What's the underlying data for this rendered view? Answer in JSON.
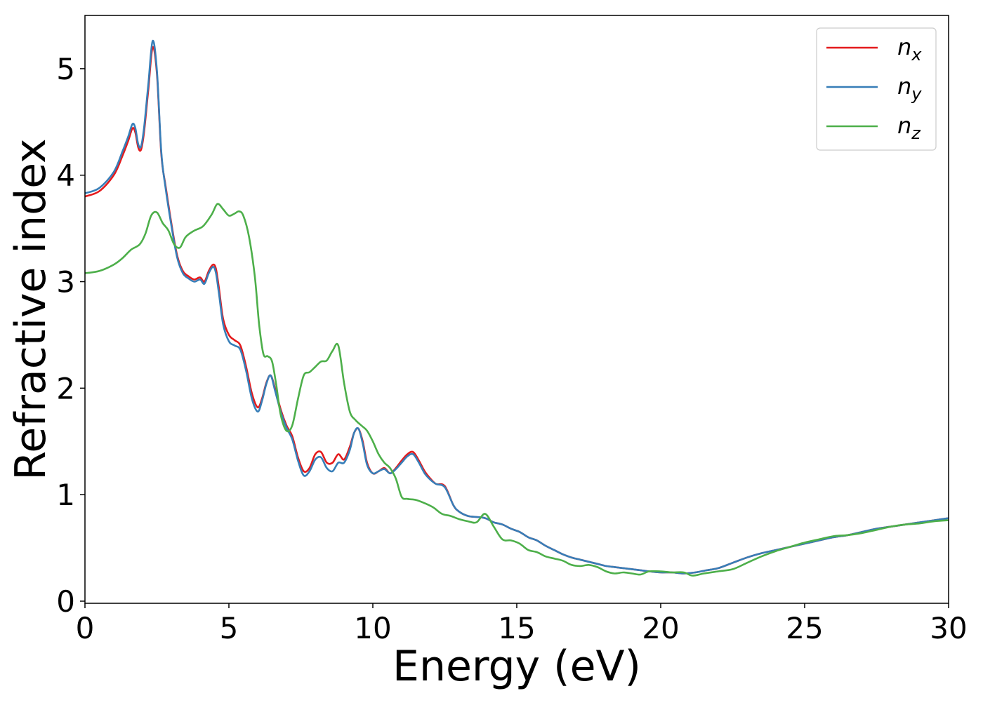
{
  "chart_data": {
    "type": "line",
    "title": "",
    "xlabel": "Energy (eV)",
    "ylabel": "Refractive index",
    "xlim": [
      0,
      30
    ],
    "ylim": [
      -0.02,
      5.5
    ],
    "xticks": [
      0,
      5,
      10,
      15,
      20,
      25,
      30
    ],
    "xtick_labels": [
      "0",
      "5",
      "10",
      "15",
      "20",
      "25",
      "30"
    ],
    "yticks": [
      0,
      1,
      2,
      3,
      4,
      5
    ],
    "ytick_labels": [
      "0",
      "1",
      "2",
      "3",
      "4",
      "5"
    ],
    "grid": false,
    "legend_position": "top-right",
    "series": [
      {
        "name": "n_x",
        "base": "n",
        "sub": "x",
        "color": "#e41a1c",
        "x": [
          0,
          0.5,
          1.0,
          1.3,
          1.5,
          1.65,
          1.75,
          1.85,
          1.95,
          2.05,
          2.2,
          2.35,
          2.5,
          2.65,
          2.8,
          3.0,
          3.2,
          3.4,
          3.6,
          3.8,
          4.0,
          4.15,
          4.3,
          4.45,
          4.55,
          4.65,
          4.8,
          5.0,
          5.2,
          5.4,
          5.6,
          5.8,
          6.0,
          6.15,
          6.3,
          6.45,
          6.6,
          6.8,
          7.0,
          7.2,
          7.4,
          7.6,
          7.8,
          8.0,
          8.2,
          8.4,
          8.6,
          8.8,
          9.0,
          9.2,
          9.35,
          9.5,
          9.65,
          9.8,
          10.0,
          10.2,
          10.4,
          10.6,
          10.8,
          11.0,
          11.2,
          11.4,
          11.6,
          11.8,
          12.0,
          12.2,
          12.5,
          12.8,
          13.0,
          13.3,
          13.6,
          13.9,
          14.2,
          14.5,
          14.8,
          15.1,
          15.4,
          15.7,
          16.0,
          16.3,
          16.6,
          16.9,
          17.2,
          17.5,
          17.8,
          18.1,
          18.4,
          18.7,
          19.0,
          19.3,
          19.6,
          20.0,
          20.4,
          20.8,
          21.2,
          21.6,
          22.0,
          22.5,
          23.0,
          23.5,
          24.0,
          24.5,
          25.0,
          25.5,
          26.0,
          26.5,
          27.0,
          27.5,
          28.0,
          28.5,
          29.0,
          29.5,
          30.0
        ],
        "y": [
          3.8,
          3.85,
          4.0,
          4.18,
          4.32,
          4.44,
          4.4,
          4.26,
          4.24,
          4.4,
          4.8,
          5.2,
          4.95,
          4.2,
          3.9,
          3.55,
          3.25,
          3.1,
          3.05,
          3.02,
          3.04,
          3.0,
          3.1,
          3.16,
          3.12,
          2.95,
          2.65,
          2.5,
          2.45,
          2.4,
          2.2,
          1.95,
          1.82,
          1.9,
          2.05,
          2.12,
          2.0,
          1.8,
          1.65,
          1.55,
          1.35,
          1.22,
          1.25,
          1.38,
          1.4,
          1.3,
          1.3,
          1.38,
          1.33,
          1.45,
          1.58,
          1.62,
          1.5,
          1.3,
          1.2,
          1.22,
          1.25,
          1.2,
          1.25,
          1.32,
          1.38,
          1.4,
          1.32,
          1.22,
          1.15,
          1.1,
          1.08,
          0.9,
          0.84,
          0.8,
          0.79,
          0.78,
          0.74,
          0.72,
          0.68,
          0.65,
          0.6,
          0.57,
          0.52,
          0.48,
          0.44,
          0.41,
          0.39,
          0.37,
          0.35,
          0.33,
          0.32,
          0.31,
          0.3,
          0.29,
          0.28,
          0.27,
          0.27,
          0.26,
          0.27,
          0.29,
          0.31,
          0.36,
          0.41,
          0.45,
          0.48,
          0.51,
          0.54,
          0.57,
          0.6,
          0.62,
          0.65,
          0.68,
          0.7,
          0.72,
          0.74,
          0.76,
          0.78
        ]
      },
      {
        "name": "n_y",
        "base": "n",
        "sub": "y",
        "color": "#377eb8",
        "x": [
          0,
          0.5,
          1.0,
          1.3,
          1.5,
          1.65,
          1.75,
          1.85,
          1.95,
          2.05,
          2.2,
          2.35,
          2.5,
          2.65,
          2.8,
          3.0,
          3.2,
          3.4,
          3.6,
          3.8,
          4.0,
          4.15,
          4.3,
          4.45,
          4.55,
          4.65,
          4.8,
          5.0,
          5.2,
          5.4,
          5.6,
          5.8,
          6.0,
          6.15,
          6.3,
          6.45,
          6.6,
          6.8,
          7.0,
          7.2,
          7.4,
          7.6,
          7.8,
          8.0,
          8.2,
          8.4,
          8.6,
          8.8,
          9.0,
          9.2,
          9.35,
          9.5,
          9.65,
          9.8,
          10.0,
          10.2,
          10.4,
          10.6,
          10.8,
          11.0,
          11.2,
          11.4,
          11.6,
          11.8,
          12.0,
          12.2,
          12.5,
          12.8,
          13.0,
          13.3,
          13.6,
          13.9,
          14.2,
          14.5,
          14.8,
          15.1,
          15.4,
          15.7,
          16.0,
          16.3,
          16.6,
          16.9,
          17.2,
          17.5,
          17.8,
          18.1,
          18.4,
          18.7,
          19.0,
          19.3,
          19.6,
          20.0,
          20.4,
          20.8,
          21.2,
          21.6,
          22.0,
          22.5,
          23.0,
          23.5,
          24.0,
          24.5,
          25.0,
          25.5,
          26.0,
          26.5,
          27.0,
          27.5,
          28.0,
          28.5,
          29.0,
          29.5,
          30.0
        ],
        "y": [
          3.83,
          3.88,
          4.03,
          4.22,
          4.36,
          4.48,
          4.44,
          4.29,
          4.27,
          4.44,
          4.85,
          5.26,
          4.98,
          4.22,
          3.88,
          3.53,
          3.23,
          3.08,
          3.03,
          3.0,
          3.02,
          2.98,
          3.08,
          3.14,
          3.08,
          2.9,
          2.6,
          2.44,
          2.4,
          2.36,
          2.16,
          1.9,
          1.78,
          1.88,
          2.04,
          2.12,
          1.98,
          1.78,
          1.63,
          1.52,
          1.32,
          1.18,
          1.22,
          1.33,
          1.35,
          1.25,
          1.22,
          1.3,
          1.3,
          1.42,
          1.58,
          1.62,
          1.48,
          1.28,
          1.2,
          1.22,
          1.24,
          1.2,
          1.24,
          1.3,
          1.36,
          1.38,
          1.3,
          1.2,
          1.14,
          1.1,
          1.07,
          0.9,
          0.84,
          0.8,
          0.79,
          0.78,
          0.74,
          0.72,
          0.68,
          0.65,
          0.6,
          0.57,
          0.52,
          0.48,
          0.44,
          0.41,
          0.39,
          0.37,
          0.35,
          0.33,
          0.32,
          0.31,
          0.3,
          0.29,
          0.28,
          0.27,
          0.27,
          0.26,
          0.27,
          0.29,
          0.31,
          0.36,
          0.41,
          0.45,
          0.48,
          0.51,
          0.54,
          0.57,
          0.6,
          0.62,
          0.65,
          0.68,
          0.7,
          0.72,
          0.74,
          0.76,
          0.78
        ]
      },
      {
        "name": "n_z",
        "base": "n",
        "sub": "z",
        "color": "#4daf4a",
        "x": [
          0,
          0.5,
          1.0,
          1.3,
          1.6,
          1.9,
          2.1,
          2.3,
          2.5,
          2.7,
          2.9,
          3.1,
          3.3,
          3.5,
          3.8,
          4.1,
          4.4,
          4.6,
          4.8,
          5.0,
          5.2,
          5.35,
          5.5,
          5.7,
          5.9,
          6.05,
          6.2,
          6.35,
          6.5,
          6.65,
          6.8,
          7.0,
          7.2,
          7.4,
          7.6,
          7.8,
          8.0,
          8.2,
          8.4,
          8.6,
          8.8,
          9.0,
          9.2,
          9.4,
          9.6,
          9.8,
          10.0,
          10.2,
          10.4,
          10.6,
          10.8,
          11.0,
          11.2,
          11.5,
          11.8,
          12.1,
          12.4,
          12.7,
          13.0,
          13.3,
          13.6,
          13.9,
          14.2,
          14.5,
          14.8,
          15.1,
          15.4,
          15.7,
          16.0,
          16.3,
          16.6,
          16.9,
          17.2,
          17.5,
          17.8,
          18.1,
          18.4,
          18.7,
          19.0,
          19.3,
          19.6,
          20.0,
          20.4,
          20.8,
          21.1,
          21.5,
          22.0,
          22.5,
          23.0,
          23.5,
          24.0,
          24.5,
          25.0,
          25.5,
          26.0,
          26.5,
          27.0,
          27.5,
          28.0,
          28.5,
          29.0,
          29.5,
          30.0
        ],
        "y": [
          3.08,
          3.1,
          3.16,
          3.22,
          3.3,
          3.35,
          3.45,
          3.62,
          3.65,
          3.55,
          3.48,
          3.35,
          3.32,
          3.42,
          3.48,
          3.52,
          3.63,
          3.73,
          3.68,
          3.62,
          3.64,
          3.66,
          3.62,
          3.42,
          3.05,
          2.6,
          2.32,
          2.3,
          2.25,
          2.02,
          1.75,
          1.6,
          1.65,
          1.9,
          2.12,
          2.15,
          2.2,
          2.25,
          2.26,
          2.35,
          2.4,
          2.05,
          1.78,
          1.7,
          1.65,
          1.6,
          1.5,
          1.38,
          1.3,
          1.25,
          1.15,
          0.98,
          0.96,
          0.95,
          0.92,
          0.88,
          0.82,
          0.8,
          0.77,
          0.75,
          0.74,
          0.82,
          0.7,
          0.58,
          0.57,
          0.54,
          0.48,
          0.46,
          0.42,
          0.4,
          0.38,
          0.34,
          0.33,
          0.34,
          0.32,
          0.28,
          0.26,
          0.27,
          0.26,
          0.25,
          0.28,
          0.28,
          0.27,
          0.27,
          0.24,
          0.26,
          0.28,
          0.3,
          0.36,
          0.42,
          0.47,
          0.51,
          0.55,
          0.58,
          0.61,
          0.62,
          0.64,
          0.67,
          0.7,
          0.72,
          0.73,
          0.75,
          0.76
        ]
      }
    ]
  }
}
